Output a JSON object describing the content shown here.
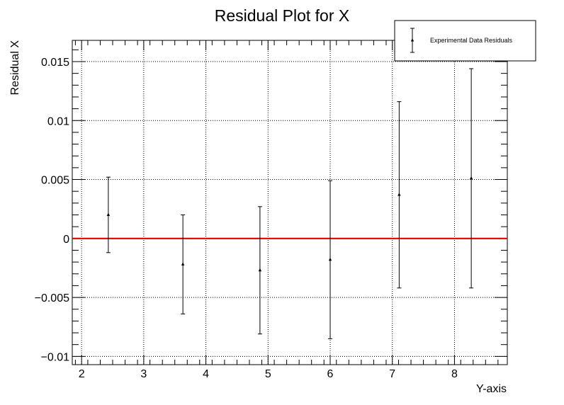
{
  "chart_data": {
    "type": "scatter",
    "title": "Residual Plot for X",
    "xlabel": "Y-axis",
    "ylabel": "Residual X",
    "xlim": [
      1.85,
      8.85
    ],
    "ylim": [
      -0.0107,
      0.0168
    ],
    "xticks": [
      2,
      3,
      4,
      5,
      6,
      7,
      8
    ],
    "xtick_labels": [
      "2",
      "3",
      "4",
      "5",
      "6",
      "7",
      "8"
    ],
    "yticks": [
      -0.01,
      -0.005,
      0,
      0.005,
      0.01,
      0.015
    ],
    "ytick_labels": [
      "−0.01",
      "−0.005",
      "0",
      "0.005",
      "0.01",
      "0.015"
    ],
    "grid": true,
    "legend_position": "top-right",
    "reference_line": {
      "y": 0,
      "color": "#e00000"
    },
    "series": [
      {
        "name": "Experimental Data Residuals",
        "color": "#000000",
        "marker": "triangle-up",
        "x": [
          2.43,
          3.63,
          4.87,
          6.0,
          7.11,
          8.27
        ],
        "y": [
          0.002,
          -0.0022,
          -0.0027,
          -0.0018,
          0.0037,
          0.0051
        ],
        "yerr": [
          0.0032,
          0.0042,
          0.0054,
          0.0067,
          0.0079,
          0.0093
        ]
      }
    ]
  }
}
